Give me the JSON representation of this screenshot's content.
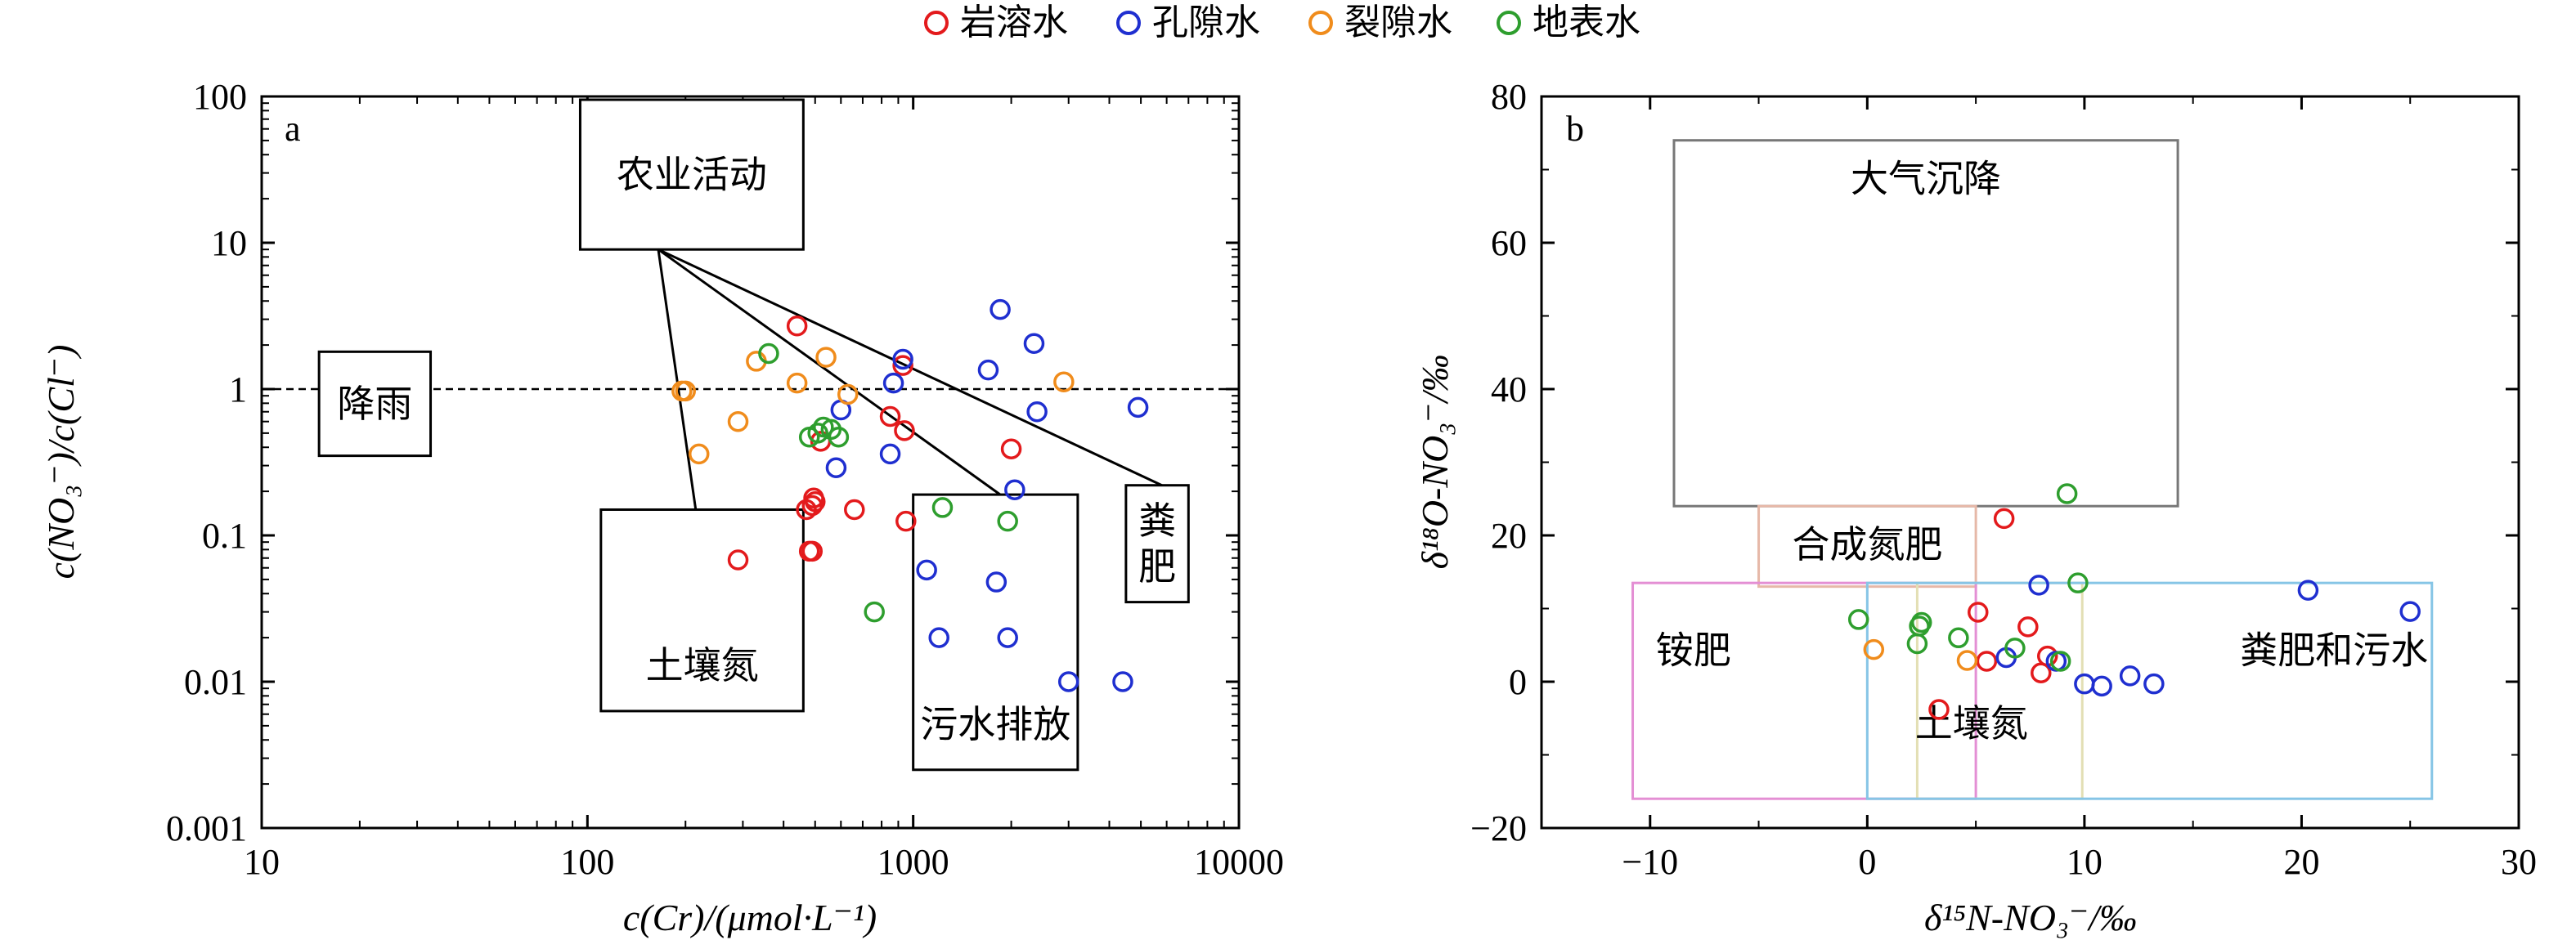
{
  "legend": [
    {
      "label": "岩溶水",
      "color": "#e31a1c"
    },
    {
      "label": "孔隙水",
      "color": "#1f2fd0"
    },
    {
      "label": "裂隙水",
      "color": "#f08c1c"
    },
    {
      "label": "地表水",
      "color": "#2e9e2e"
    }
  ],
  "chart_data": [
    {
      "type": "scatter",
      "panel_label": "a",
      "xlabel": "c(Cr)/(μmol·L⁻¹)",
      "ylabel": "c(NO₃⁻)/c(Cl⁻)",
      "xscale": "log",
      "yscale": "log",
      "xlim": [
        10,
        10000
      ],
      "ylim": [
        0.001,
        100
      ],
      "x_ticks": [
        "10",
        "100",
        "1000",
        "10000"
      ],
      "y_ticks": [
        "0.001",
        "0.01",
        "0.1",
        "1",
        "10",
        "100"
      ],
      "reference_line": {
        "y": 1,
        "style": "dashed"
      },
      "boxes": [
        {
          "label": "农业活动",
          "x": [
            95,
            460
          ],
          "y": [
            9,
            95
          ]
        },
        {
          "label": "降雨",
          "x": [
            15,
            33
          ],
          "y": [
            0.35,
            1.8
          ]
        },
        {
          "label": "土壤氮",
          "x": [
            110,
            460
          ],
          "y": [
            0.0063,
            0.15
          ]
        },
        {
          "label": "污水排放",
          "x": [
            1000,
            3200
          ],
          "y": [
            0.0025,
            0.19
          ]
        },
        {
          "label": "粪肥",
          "x": [
            4500,
            7000
          ],
          "y": [
            0.035,
            0.22
          ]
        }
      ],
      "mixing_lines": [
        {
          "from": [
            165,
            9
          ],
          "to": [
            215,
            0.15
          ]
        },
        {
          "from": [
            165,
            9
          ],
          "to": [
            1850,
            0.19
          ]
        },
        {
          "from": [
            165,
            9
          ],
          "to": [
            5800,
            0.22
          ]
        }
      ],
      "series": [
        {
          "name": "岩溶水",
          "color": "#e31a1c",
          "points": [
            [
              440,
              2.7
            ],
            [
              290,
              0.068
            ],
            [
              490,
              0.16
            ],
            [
              495,
              0.18
            ],
            [
              470,
              0.15
            ],
            [
              500,
              0.17
            ],
            [
              480,
              0.078
            ],
            [
              490,
              0.078
            ],
            [
              520,
              0.44
            ],
            [
              660,
              0.15
            ],
            [
              850,
              0.65
            ],
            [
              930,
              1.45
            ],
            [
              940,
              0.52
            ],
            [
              950,
              0.125
            ],
            [
              2000,
              0.39
            ]
          ]
        },
        {
          "name": "孔隙水",
          "color": "#1f2fd0",
          "points": [
            [
              1850,
              3.5
            ],
            [
              2350,
              2.05
            ],
            [
              1700,
              1.35
            ],
            [
              930,
              1.6
            ],
            [
              870,
              1.1
            ],
            [
              2400,
              0.7
            ],
            [
              4900,
              0.75
            ],
            [
              600,
              0.72
            ],
            [
              580,
              0.29
            ],
            [
              850,
              0.36
            ],
            [
              2050,
              0.205
            ],
            [
              1100,
              0.058
            ],
            [
              1800,
              0.048
            ],
            [
              1200,
              0.02
            ],
            [
              1950,
              0.02
            ],
            [
              3000,
              0.01
            ],
            [
              4400,
              0.01
            ]
          ]
        },
        {
          "name": "裂隙水",
          "color": "#f08c1c",
          "points": [
            [
              195,
              0.97
            ],
            [
              200,
              0.97
            ],
            [
              330,
              1.55
            ],
            [
              540,
              1.65
            ],
            [
              440,
              1.1
            ],
            [
              630,
              0.92
            ],
            [
              290,
              0.6
            ],
            [
              220,
              0.36
            ],
            [
              2900,
              1.12
            ]
          ]
        },
        {
          "name": "地表水",
          "color": "#2e9e2e",
          "points": [
            [
              360,
              1.75
            ],
            [
              480,
              0.47
            ],
            [
              530,
              0.55
            ],
            [
              560,
              0.53
            ],
            [
              590,
              0.47
            ],
            [
              510,
              0.5
            ],
            [
              1230,
              0.155
            ],
            [
              1950,
              0.125
            ],
            [
              760,
              0.03
            ]
          ]
        }
      ]
    },
    {
      "type": "scatter",
      "panel_label": "b",
      "xlabel": "δ¹⁵N-NO₃⁻/‰",
      "ylabel": "δ¹⁸O-NO₃⁻/‰",
      "xlim": [
        -15,
        30
      ],
      "ylim": [
        -20,
        80
      ],
      "x_ticks": [
        "−10",
        "0",
        "10",
        "20",
        "30"
      ],
      "y_ticks": [
        "−20",
        "0",
        "20",
        "40",
        "60",
        "80"
      ],
      "boxes": [
        {
          "label": "大气沉降",
          "x": [
            -8.9,
            14.3
          ],
          "y": [
            24,
            74
          ],
          "color": "#777777"
        },
        {
          "label": "合成氮肥",
          "x": [
            -5,
            5
          ],
          "y": [
            13,
            24
          ],
          "color": "#e6b8a8"
        },
        {
          "label": "铵肥",
          "x": [
            -10.8,
            5
          ],
          "y": [
            -16,
            13.5
          ],
          "color": "#e48fd4"
        },
        {
          "label": "土壤氮",
          "x": [
            2.3,
            9.9
          ],
          "y": [
            -16,
            13.5
          ],
          "color": "#e3dfb4"
        },
        {
          "label": "粪肥和污水",
          "x": [
            0,
            26
          ],
          "y": [
            -16,
            13.5
          ],
          "color": "#86c5e6"
        }
      ],
      "series": [
        {
          "name": "岩溶水",
          "color": "#e31a1c",
          "points": [
            [
              6.3,
              22.3
            ],
            [
              5.1,
              9.5
            ],
            [
              7.4,
              7.5
            ],
            [
              8.3,
              3.5
            ],
            [
              5.5,
              2.8
            ],
            [
              8.0,
              1.2
            ],
            [
              3.3,
              -3.8
            ]
          ]
        },
        {
          "name": "孔隙水",
          "color": "#1f2fd0",
          "points": [
            [
              7.9,
              13.2
            ],
            [
              20.3,
              12.5
            ],
            [
              25,
              9.6
            ],
            [
              6.4,
              3.3
            ],
            [
              8.7,
              2.8
            ],
            [
              12.1,
              0.8
            ],
            [
              10.0,
              -0.3
            ],
            [
              10.8,
              -0.6
            ],
            [
              13.2,
              -0.3
            ]
          ]
        },
        {
          "name": "裂隙水",
          "color": "#f08c1c",
          "points": [
            [
              0.3,
              4.4
            ],
            [
              4.6,
              2.9
            ]
          ]
        },
        {
          "name": "地表水",
          "color": "#2e9e2e",
          "points": [
            [
              9.2,
              25.7
            ],
            [
              9.7,
              13.5
            ],
            [
              -0.4,
              8.5
            ],
            [
              2.5,
              8.1
            ],
            [
              2.4,
              7.6
            ],
            [
              4.2,
              6.0
            ],
            [
              6.8,
              4.6
            ],
            [
              2.3,
              5.2
            ],
            [
              8.9,
              2.8
            ]
          ]
        }
      ]
    }
  ]
}
